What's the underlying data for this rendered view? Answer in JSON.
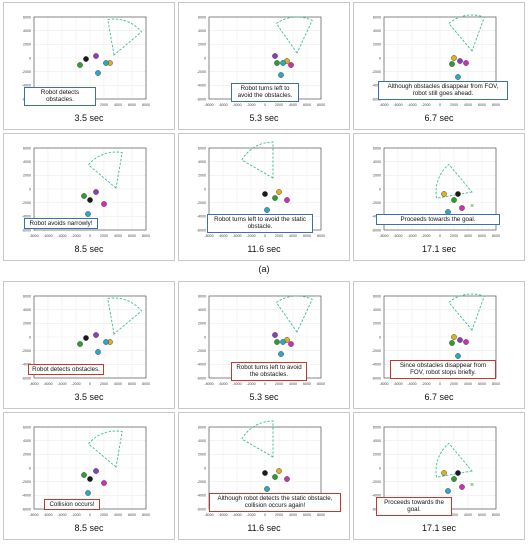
{
  "caption_a": "(a)",
  "axis": {
    "x_ticks": [
      "-8000",
      "-6000",
      "-4000",
      "-2000",
      "0",
      "2000",
      "4000",
      "6000",
      "8000"
    ],
    "y_ticks": [
      "6000",
      "4000",
      "2000",
      "0",
      "-2000",
      "-4000",
      "-6000"
    ]
  },
  "colors": {
    "fov": "#3bbf8c",
    "note_a": "#3a6fb0",
    "note_b": "#c0392b",
    "robot": "#1a1a1a",
    "obs_green": "#2e9e2e",
    "obs_purple": "#8a3fb5",
    "obs_magenta": "#d02fb0",
    "obs_cyan": "#29a8c8",
    "obs_yellow": "#e0b020"
  },
  "figure_a": [
    {
      "time": "3.5 sec",
      "note": "Robot detects obstacles."
    },
    {
      "time": "5.3 sec",
      "note": "Robot turns left to avoid the obstacles."
    },
    {
      "time": "6.7 sec",
      "note": "Although obstacles disappear from FOV, robot still goes ahead."
    },
    {
      "time": "8.5 sec",
      "note": "Robot avoids narrowly!"
    },
    {
      "time": "11.6 sec",
      "note": "Robot turns left to avoid the static obstacle."
    },
    {
      "time": "17.1 sec",
      "note": "Proceeds towards the goal."
    }
  ],
  "figure_b": [
    {
      "time": "3.5 sec",
      "note": "Robot detects obstacles."
    },
    {
      "time": "5.3 sec",
      "note": "Robot turns left to avoid the obstacles."
    },
    {
      "time": "6.7 sec",
      "note": "Since obstacles disappear from FOV, robot stops briefly."
    },
    {
      "time": "8.5 sec",
      "note": "Collision occurs!"
    },
    {
      "time": "11.6 sec",
      "note": "Although robot detects the static obstacle, collision occurs again!"
    },
    {
      "time": "17.1 sec",
      "note": "Proceeds towards the goal."
    }
  ]
}
